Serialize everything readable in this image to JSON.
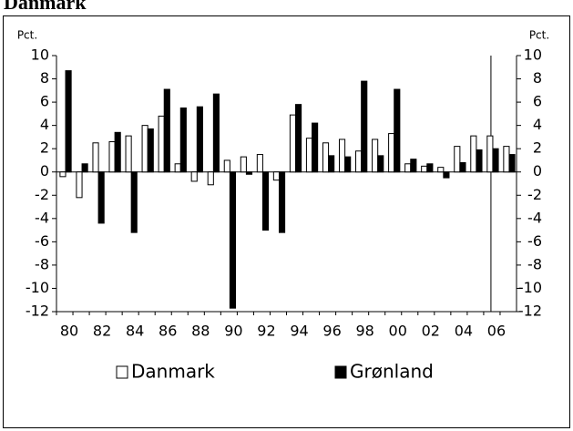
{
  "chart_data": {
    "type": "bar",
    "title": "Danmark",
    "y_label": "Pct.",
    "y2_label": "Pct.",
    "categories": [
      "80",
      null,
      "82",
      null,
      "84",
      null,
      "86",
      null,
      "88",
      null,
      "90",
      null,
      "92",
      null,
      "94",
      null,
      "96",
      null,
      "98",
      null,
      "00",
      null,
      "02",
      null,
      "04",
      null,
      "06",
      null
    ],
    "series": [
      {
        "name": "Danmark",
        "color": "#ffffff",
        "values": [
          -0.4,
          -2.2,
          2.5,
          2.6,
          3.1,
          4.0,
          4.8,
          0.7,
          -0.8,
          -1.1,
          1.0,
          1.3,
          1.5,
          -0.7,
          4.9,
          2.9,
          2.5,
          2.8,
          1.8,
          2.8,
          3.3,
          0.7,
          0.5,
          0.4,
          2.2,
          3.1,
          3.1,
          2.2
        ]
      },
      {
        "name": "Grønland",
        "color": "#000000",
        "values": [
          8.7,
          0.7,
          -4.4,
          3.4,
          -5.2,
          3.7,
          7.1,
          5.5,
          5.6,
          6.7,
          -11.7,
          -0.2,
          -5.0,
          -5.2,
          5.8,
          4.2,
          1.4,
          1.3,
          7.8,
          1.4,
          7.1,
          1.1,
          0.7,
          -0.5,
          0.8,
          1.9,
          2.0,
          1.5
        ]
      }
    ],
    "ylim": [
      -12,
      10
    ],
    "yticks": [
      -12,
      -10,
      -8,
      -6,
      -4,
      -2,
      0,
      2,
      4,
      6,
      8,
      10
    ],
    "y2lim": [
      -12,
      10
    ],
    "y2ticks": [
      -12,
      -10,
      -8,
      -6,
      -4,
      -2,
      0,
      2,
      4,
      6,
      8,
      10
    ],
    "grid": false
  }
}
